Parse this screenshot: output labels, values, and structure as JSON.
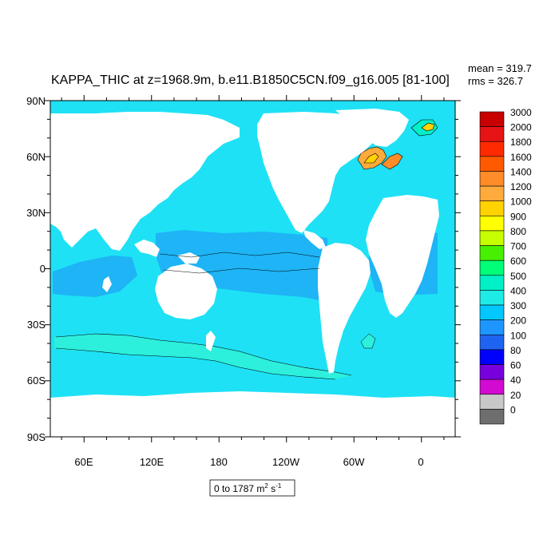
{
  "title": "KAPPA_THIC at z=1968.9m, b.e11.B1850C5CN.f09_g16.005 [81-100]",
  "stats": {
    "mean": "mean = 319.7",
    "rms": "rms = 326.7"
  },
  "lat_labels": [
    "90N",
    "60N",
    "30N",
    "0",
    "30S",
    "60S",
    "90S"
  ],
  "lon_labels": [
    "60E",
    "120E",
    "180",
    "120W",
    "60W",
    "0"
  ],
  "range_label": {
    "text": "0 to 1787 m",
    "sup1": "2",
    "mid": " s",
    "sup2": "-1"
  },
  "colorbar": {
    "labels": [
      "3000",
      "2000",
      "1800",
      "1600",
      "1400",
      "1200",
      "1000",
      "900",
      "800",
      "700",
      "600",
      "500",
      "400",
      "300",
      "200",
      "100",
      "80",
      "60",
      "40",
      "20",
      "0"
    ],
    "colors": [
      "#c80000",
      "#e61414",
      "#ff2a00",
      "#ff5a00",
      "#ff8c28",
      "#ffaa3c",
      "#ffd200",
      "#ffff00",
      "#c8ff00",
      "#46f000",
      "#00ff78",
      "#00f0c8",
      "#1eebe6",
      "#00c8ff",
      "#1e96ff",
      "#1e64f0",
      "#0000ff",
      "#7800dc",
      "#d20ad2",
      "#c8c8c8",
      "#6e6e6e"
    ]
  },
  "colors": {
    "ocean_main": "#1ee1f5",
    "ocean_band": "#1eb4f5",
    "ocean_south": "#2cf0dc",
    "land": "#ffffff"
  }
}
